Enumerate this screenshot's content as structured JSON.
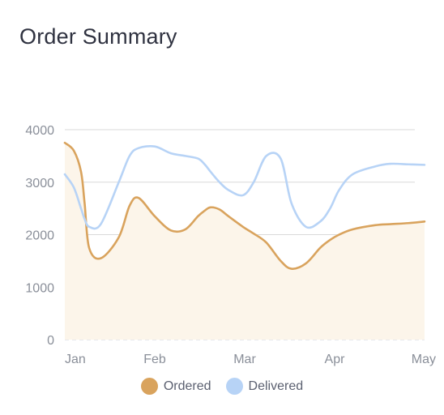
{
  "title": "Order Summary",
  "colors": {
    "ordered": "#d9a35d",
    "ordered_fill": "#fcf5ea",
    "delivered": "#b7d3f6",
    "grid": "#d9d9d9",
    "baseline": "#cfd3d9"
  },
  "chart_data": {
    "type": "area",
    "title": "Order Summary",
    "xlabel": "",
    "ylabel": "",
    "ylim": [
      0,
      4000
    ],
    "y_ticks": [
      "0",
      "1000",
      "2000",
      "3000",
      "4000"
    ],
    "x_tick_labels": [
      "Jan",
      "Feb",
      "Mar",
      "Apr",
      "May"
    ],
    "x": [
      0,
      0.1,
      0.18,
      0.22,
      0.27,
      0.4,
      0.6,
      0.72,
      0.82,
      1.0,
      1.18,
      1.34,
      1.48,
      1.55,
      1.62,
      1.72,
      1.82,
      1.98,
      2.1,
      2.24,
      2.4,
      2.52,
      2.68,
      2.84,
      2.95,
      3.05,
      3.2,
      3.45,
      3.62,
      3.82,
      4.0
    ],
    "grid": true,
    "legend": "bottom-center",
    "series": [
      {
        "name": "Ordered",
        "values": [
          3750,
          3600,
          3200,
          2600,
          1750,
          1550,
          1950,
          2550,
          2700,
          2350,
          2080,
          2100,
          2350,
          2450,
          2520,
          2480,
          2350,
          2150,
          2020,
          1850,
          1500,
          1350,
          1450,
          1750,
          1900,
          2000,
          2100,
          2180,
          2200,
          2220,
          2250
        ]
      },
      {
        "name": "Delivered",
        "values": [
          3150,
          2900,
          2500,
          2300,
          2150,
          2200,
          3000,
          3500,
          3650,
          3680,
          3550,
          3500,
          3450,
          3350,
          3200,
          3000,
          2850,
          2750,
          3000,
          3500,
          3450,
          2600,
          2150,
          2250,
          2500,
          2850,
          3150,
          3300,
          3350,
          3340,
          3330
        ]
      }
    ]
  }
}
